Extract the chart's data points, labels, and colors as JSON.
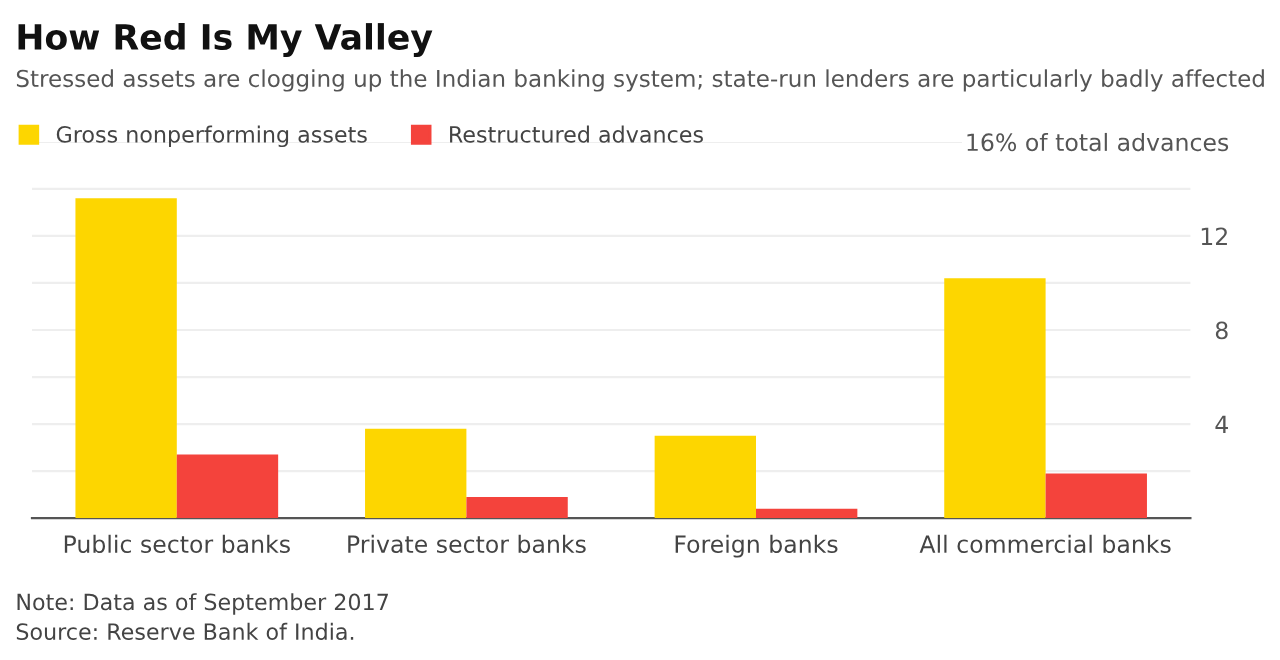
{
  "chart_data": {
    "type": "bar",
    "title": "How Red Is My Valley",
    "subtitle": "Stressed assets are clogging up the Indian banking system; state-run lenders are particularly badly affected",
    "categories": [
      "Public sector banks",
      "Private sector banks",
      "Foreign banks",
      "All commercial banks"
    ],
    "series": [
      {
        "name": "Gross nonperforming assets",
        "color": "#fdd600",
        "values": [
          13.6,
          3.8,
          3.5,
          10.2
        ]
      },
      {
        "name": "Restructured advances",
        "color": "#f4433c",
        "values": [
          2.7,
          0.9,
          0.4,
          1.9
        ]
      }
    ],
    "ylim": [
      0,
      16
    ],
    "yticks": [
      {
        "value": 0,
        "label": null
      },
      {
        "value": 2,
        "label": null
      },
      4,
      {
        "value": 6,
        "label": null
      },
      8,
      {
        "value": 10,
        "label": null
      },
      12,
      {
        "value": 14,
        "label": null
      },
      {
        "value": 16,
        "label": "16% of total advances"
      }
    ],
    "grid": "y",
    "legend": "top left",
    "annotations": [
      "Note: Data as of September 2017",
      "Source: Reserve Bank of India."
    ]
  }
}
